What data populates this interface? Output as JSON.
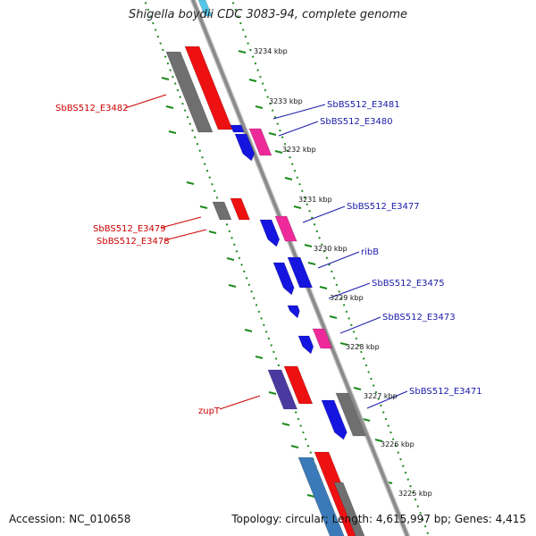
{
  "title": "Shigella boydii CDC 3083-94, complete genome",
  "footer": {
    "accession": "Accession: NC_010658",
    "summary": "Topology: circular; Length: 4,615,997 bp; Genes: 4,415"
  },
  "colors": {
    "backbone": "#8a8a8a",
    "scale_green": "#1d8a1d",
    "label_red": "#cc0000",
    "label_blue": "#1a1aaa",
    "gene_red": "#ee1111",
    "gene_gray": "#6f6f6f",
    "gene_blue": "#1515e0",
    "gene_pink": "#ee2a9a",
    "gene_purple": "#4a3aa0",
    "gene_steel": "#3a7ab8"
  },
  "scale_ticks_kbp": [
    3234,
    3233,
    3232,
    3231,
    3230,
    3229,
    3228,
    3227,
    3226,
    3225
  ],
  "tick_unit": "kbp",
  "gene_labels": [
    {
      "name": "SbBS512_E3482",
      "side": "left"
    },
    {
      "name": "SbBS512_E3481",
      "side": "right"
    },
    {
      "name": "SbBS512_E3480",
      "side": "right"
    },
    {
      "name": "SbBS512_E3479",
      "side": "left"
    },
    {
      "name": "SbBS512_E3478",
      "side": "left"
    },
    {
      "name": "SbBS512_E3477",
      "side": "right"
    },
    {
      "name": "ribB",
      "side": "right"
    },
    {
      "name": "SbBS512_E3475",
      "side": "right"
    },
    {
      "name": "SbBS512_E3473",
      "side": "right"
    },
    {
      "name": "zupT",
      "side": "left"
    },
    {
      "name": "SbBS512_E3471",
      "side": "right"
    }
  ]
}
